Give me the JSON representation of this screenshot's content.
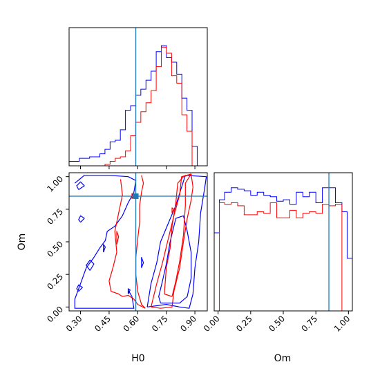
{
  "chart_data": {
    "type": "corner",
    "colors": {
      "blue": "#0000ff",
      "red": "#ff0000",
      "truth": "#1f77b4"
    },
    "parameters": [
      "H0",
      "Om"
    ],
    "truth": {
      "H0": 0.59,
      "Om": 0.85
    },
    "axes": {
      "H0": {
        "label": "H0",
        "range": [
          0.24,
          0.965
        ],
        "ticks": [
          0.3,
          0.45,
          0.6,
          0.75,
          0.9
        ],
        "tick_labels": [
          "0.30",
          "0.45",
          "0.60",
          "0.75",
          "0.90"
        ]
      },
      "Om": {
        "label": "Om",
        "range": [
          -0.03,
          1.03
        ],
        "ticks": [
          0.0,
          0.25,
          0.5,
          0.75,
          1.0
        ],
        "tick_labels": [
          "0.00",
          "0.25",
          "0.50",
          "0.75",
          "1.00"
        ]
      }
    },
    "hist_H0": {
      "bin_edges": [
        0.24,
        0.2669,
        0.2938,
        0.3207,
        0.3476,
        0.3744,
        0.4013,
        0.4282,
        0.4551,
        0.482,
        0.5089,
        0.5358,
        0.5627,
        0.5896,
        0.6164,
        0.6433,
        0.6702,
        0.6971,
        0.724,
        0.7509,
        0.7778,
        0.8047,
        0.8316,
        0.8584,
        0.8853,
        0.9122,
        0.9391,
        0.966
      ],
      "series": [
        {
          "color": "blue",
          "values": [
            0.03,
            0.03,
            0.05,
            0.05,
            0.06,
            0.06,
            0.08,
            0.11,
            0.16,
            0.17,
            0.24,
            0.37,
            0.4,
            0.47,
            0.51,
            0.57,
            0.63,
            0.76,
            0.8,
            0.72,
            0.69,
            0.61,
            0.45,
            0.37,
            0.13,
            0.0,
            0.0
          ]
        },
        {
          "color": "red",
          "values": [
            0.0,
            0.0,
            0.0,
            0.0,
            0.0,
            0.0,
            0.0,
            0.01,
            0.03,
            0.05,
            0.06,
            0.1,
            0.2,
            0.29,
            0.36,
            0.42,
            0.5,
            0.66,
            0.79,
            0.75,
            0.6,
            0.55,
            0.34,
            0.23,
            0.0,
            0.0,
            0.0
          ]
        }
      ]
    },
    "hist_Om": {
      "bin_edges": [
        -0.03,
        0.01,
        0.05,
        0.1,
        0.15,
        0.2,
        0.25,
        0.3,
        0.35,
        0.4,
        0.45,
        0.5,
        0.55,
        0.6,
        0.65,
        0.7,
        0.75,
        0.8,
        0.85,
        0.9,
        0.95,
        0.99,
        1.03
      ],
      "series": [
        {
          "color": "blue",
          "values": [
            0.52,
            0.74,
            0.79,
            0.82,
            0.81,
            0.8,
            0.77,
            0.79,
            0.77,
            0.76,
            0.73,
            0.74,
            0.71,
            0.79,
            0.76,
            0.79,
            0.72,
            0.82,
            0.82,
            0.72,
            0.66,
            0.35
          ]
        },
        {
          "color": "red",
          "values": [
            0.0,
            0.72,
            0.71,
            0.72,
            0.7,
            0.64,
            0.64,
            0.66,
            0.65,
            0.72,
            0.62,
            0.62,
            0.67,
            0.62,
            0.65,
            0.66,
            0.65,
            0.71,
            0.7,
            0.71,
            0.0,
            0.0
          ]
        }
      ]
    },
    "contours": {
      "blue": [
        [
          [
            0.72,
            0.03
          ],
          [
            0.82,
            0.03
          ],
          [
            0.86,
            0.08
          ],
          [
            0.88,
            0.22
          ],
          [
            0.88,
            0.42
          ],
          [
            0.86,
            0.58
          ],
          [
            0.84,
            0.7
          ],
          [
            0.8,
            0.68
          ],
          [
            0.77,
            0.5
          ],
          [
            0.75,
            0.33
          ],
          [
            0.73,
            0.2
          ],
          [
            0.71,
            0.08
          ],
          [
            0.72,
            0.03
          ]
        ],
        [
          [
            0.65,
            0.0
          ],
          [
            0.75,
            0.02
          ],
          [
            0.82,
            0.0
          ],
          [
            0.87,
            -0.01
          ],
          [
            0.89,
            0.1
          ],
          [
            0.9,
            0.3
          ],
          [
            0.92,
            0.5
          ],
          [
            0.93,
            0.72
          ],
          [
            0.95,
            0.9
          ],
          [
            0.96,
            1.0
          ],
          [
            0.85,
            1.01
          ],
          [
            0.83,
            0.92
          ],
          [
            0.8,
            0.78
          ],
          [
            0.76,
            0.64
          ],
          [
            0.72,
            0.5
          ],
          [
            0.7,
            0.34
          ],
          [
            0.67,
            0.18
          ],
          [
            0.65,
            0.0
          ]
        ],
        [
          [
            0.27,
            0.95
          ],
          [
            0.32,
            1.01
          ],
          [
            0.45,
            1.01
          ],
          [
            0.55,
            1.0
          ],
          [
            0.59,
            0.97
          ],
          [
            0.58,
            0.88
          ],
          [
            0.55,
            0.8
          ],
          [
            0.52,
            0.7
          ],
          [
            0.48,
            0.62
          ],
          [
            0.44,
            0.58
          ],
          [
            0.43,
            0.51
          ],
          [
            0.4,
            0.45
          ],
          [
            0.37,
            0.38
          ],
          [
            0.33,
            0.3
          ],
          [
            0.3,
            0.18
          ],
          [
            0.27,
            0.06
          ],
          [
            0.27,
            -0.01
          ],
          [
            0.4,
            -0.01
          ],
          [
            0.52,
            -0.01
          ],
          [
            0.58,
            -0.01
          ],
          [
            0.57,
            0.08
          ],
          [
            0.55,
            0.13
          ]
        ],
        [
          [
            0.29,
            0.9
          ],
          [
            0.32,
            0.93
          ],
          [
            0.3,
            0.96
          ],
          [
            0.28,
            0.93
          ],
          [
            0.29,
            0.9
          ]
        ],
        [
          [
            0.3,
            0.65
          ],
          [
            0.32,
            0.68
          ],
          [
            0.3,
            0.7
          ],
          [
            0.29,
            0.67
          ],
          [
            0.3,
            0.65
          ]
        ],
        [
          [
            0.35,
            0.28
          ],
          [
            0.37,
            0.33
          ],
          [
            0.35,
            0.36
          ],
          [
            0.33,
            0.32
          ],
          [
            0.35,
            0.28
          ]
        ],
        [
          [
            0.29,
            0.12
          ],
          [
            0.31,
            0.15
          ],
          [
            0.29,
            0.17
          ],
          [
            0.28,
            0.14
          ],
          [
            0.29,
            0.12
          ]
        ],
        [
          [
            0.42,
            0.42
          ],
          [
            0.43,
            0.46
          ],
          [
            0.42,
            0.48
          ],
          [
            0.42,
            0.42
          ]
        ],
        [
          [
            0.62,
            0.3
          ],
          [
            0.63,
            0.34
          ],
          [
            0.62,
            0.38
          ],
          [
            0.62,
            0.3
          ]
        ],
        [
          [
            0.55,
            0.1
          ],
          [
            0.56,
            0.13
          ],
          [
            0.55,
            0.14
          ],
          [
            0.55,
            0.1
          ]
        ]
      ],
      "red": [
        [
          [
            0.78,
            0.08
          ],
          [
            0.8,
            0.2
          ],
          [
            0.82,
            0.35
          ],
          [
            0.84,
            0.55
          ],
          [
            0.85,
            0.78
          ],
          [
            0.85,
            0.95
          ],
          [
            0.88,
            1.02
          ],
          [
            0.84,
            1.0
          ],
          [
            0.81,
            0.95
          ],
          [
            0.8,
            0.8
          ],
          [
            0.78,
            0.62
          ],
          [
            0.77,
            0.45
          ],
          [
            0.75,
            0.3
          ],
          [
            0.74,
            0.1
          ],
          [
            0.78,
            0.08
          ]
        ],
        [
          [
            0.67,
            0.0
          ],
          [
            0.72,
            -0.01
          ],
          [
            0.78,
            0.0
          ],
          [
            0.79,
            0.12
          ],
          [
            0.82,
            0.3
          ],
          [
            0.84,
            0.5
          ],
          [
            0.86,
            0.68
          ],
          [
            0.88,
            0.82
          ],
          [
            0.89,
            0.92
          ],
          [
            0.88,
            1.02
          ],
          [
            0.83,
            1.0
          ],
          [
            0.82,
            0.86
          ],
          [
            0.79,
            0.7
          ],
          [
            0.76,
            0.52
          ],
          [
            0.73,
            0.34
          ],
          [
            0.7,
            0.18
          ],
          [
            0.67,
            0.0
          ]
        ],
        [
          [
            0.51,
            0.98
          ],
          [
            0.52,
            0.86
          ],
          [
            0.5,
            0.72
          ],
          [
            0.48,
            0.58
          ],
          [
            0.49,
            0.42
          ],
          [
            0.47,
            0.3
          ],
          [
            0.45,
            0.2
          ],
          [
            0.46,
            0.12
          ],
          [
            0.5,
            0.1
          ],
          [
            0.52,
            0.08
          ],
          [
            0.55,
            0.09
          ],
          [
            0.58,
            0.06
          ],
          [
            0.6,
            0.02
          ],
          [
            0.64,
            -0.01
          ]
        ],
        [
          [
            0.62,
            1.01
          ],
          [
            0.63,
            0.95
          ],
          [
            0.62,
            0.88
          ],
          [
            0.61,
            0.78
          ],
          [
            0.61,
            0.65
          ],
          [
            0.6,
            0.52
          ],
          [
            0.59,
            0.38
          ],
          [
            0.59,
            0.25
          ],
          [
            0.6,
            0.12
          ],
          [
            0.62,
            0.02
          ],
          [
            0.64,
            -0.01
          ]
        ],
        [
          [
            0.49,
            0.48
          ],
          [
            0.5,
            0.54
          ],
          [
            0.49,
            0.58
          ],
          [
            0.49,
            0.48
          ]
        ],
        [
          [
            0.57,
            0.83
          ],
          [
            0.58,
            0.86
          ],
          [
            0.57,
            0.87
          ],
          [
            0.57,
            0.83
          ]
        ],
        [
          [
            0.78,
            0.72
          ],
          [
            0.79,
            0.75
          ],
          [
            0.78,
            0.76
          ],
          [
            0.78,
            0.72
          ]
        ]
      ]
    }
  }
}
